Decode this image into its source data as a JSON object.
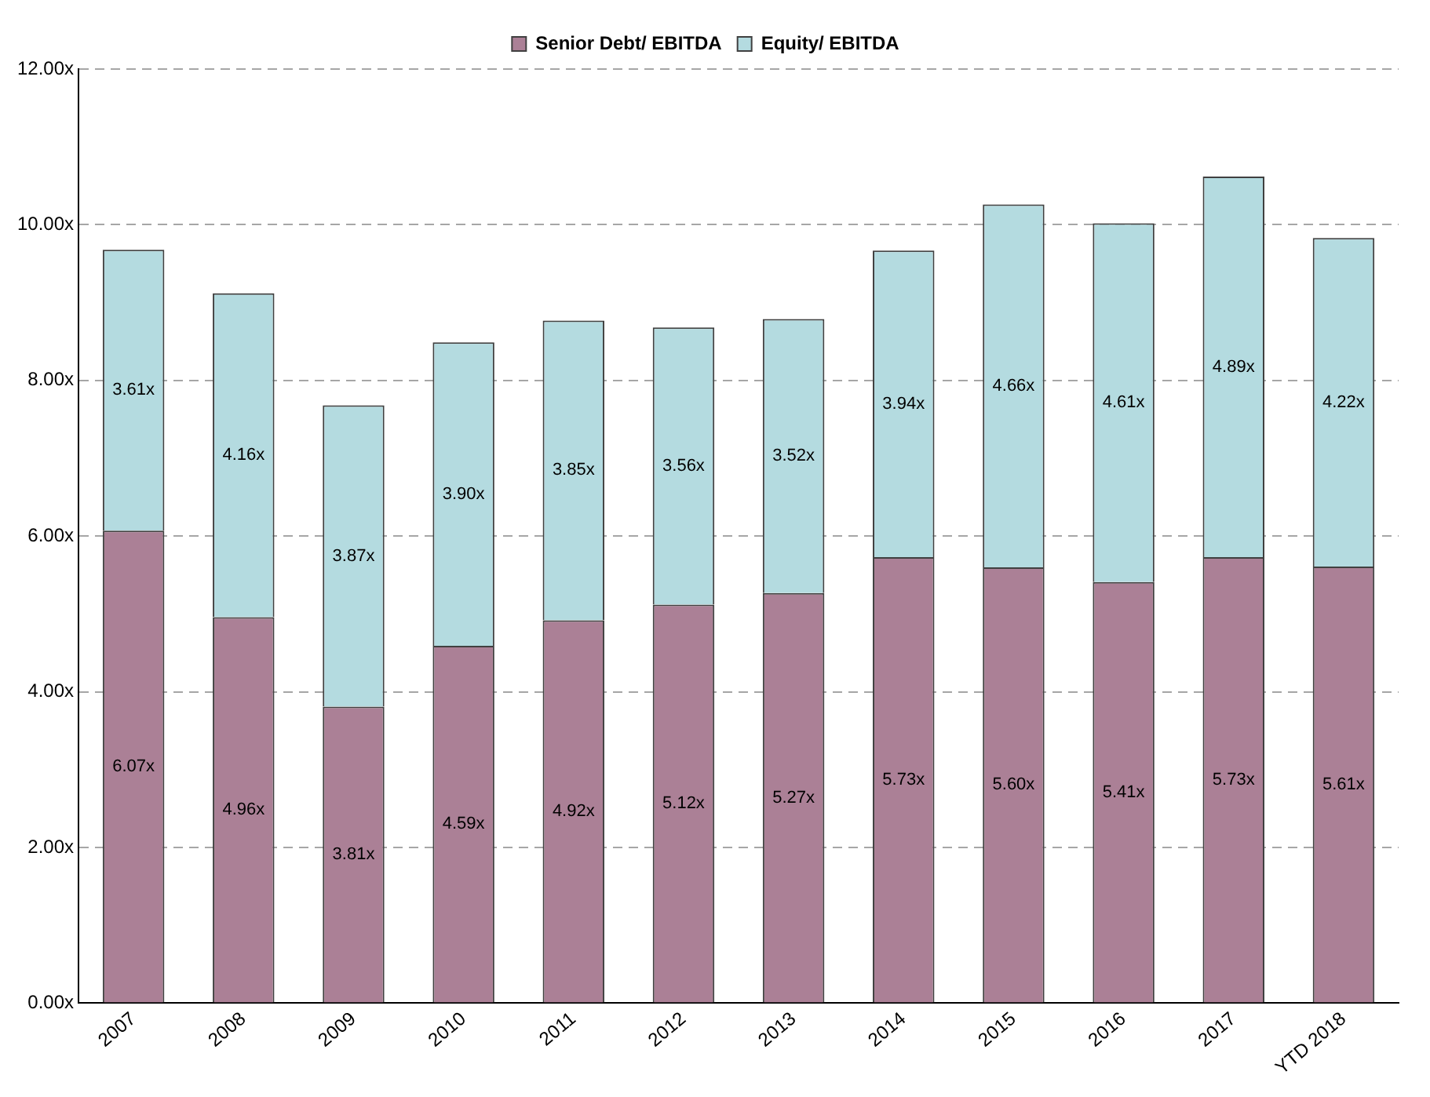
{
  "chart_data": {
    "type": "bar",
    "stacked": true,
    "legend": "top",
    "grid": "y",
    "categories": [
      "2007",
      "2008",
      "2009",
      "2010",
      "2011",
      "2012",
      "2013",
      "2014",
      "2015",
      "2016",
      "2017",
      "YTD 2018"
    ],
    "series": [
      {
        "name": "Senior Debt/ EBITDA",
        "color": "#ab8096",
        "values": [
          6.07,
          4.96,
          3.81,
          4.59,
          4.92,
          5.12,
          5.27,
          5.73,
          5.6,
          5.41,
          5.73,
          5.61
        ],
        "value_labels": [
          "6.07x",
          "4.96x",
          "3.81x",
          "4.59x",
          "4.92x",
          "5.12x",
          "5.27x",
          "5.73x",
          "5.60x",
          "5.41x",
          "5.73x",
          "5.61x"
        ]
      },
      {
        "name": "Equity/ EBITDA",
        "color": "#b4dbe0",
        "values": [
          3.61,
          4.16,
          3.87,
          3.9,
          3.85,
          3.56,
          3.52,
          3.94,
          4.66,
          4.61,
          4.89,
          4.22
        ],
        "value_labels": [
          "3.61x",
          "4.16x",
          "3.87x",
          "3.90x",
          "3.85x",
          "3.56x",
          "3.52x",
          "3.94x",
          "4.66x",
          "4.61x",
          "4.89x",
          "4.22x"
        ]
      }
    ],
    "ylim": [
      0,
      12
    ],
    "yticks": [
      {
        "value": 0,
        "label": "0.00x"
      },
      {
        "value": 2,
        "label": "2.00x"
      },
      {
        "value": 4,
        "label": "4.00x"
      },
      {
        "value": 6,
        "label": "6.00x"
      },
      {
        "value": 8,
        "label": "8.00x"
      },
      {
        "value": 10,
        "label": "10.00x"
      },
      {
        "value": 12,
        "label": "12.00x"
      }
    ]
  }
}
